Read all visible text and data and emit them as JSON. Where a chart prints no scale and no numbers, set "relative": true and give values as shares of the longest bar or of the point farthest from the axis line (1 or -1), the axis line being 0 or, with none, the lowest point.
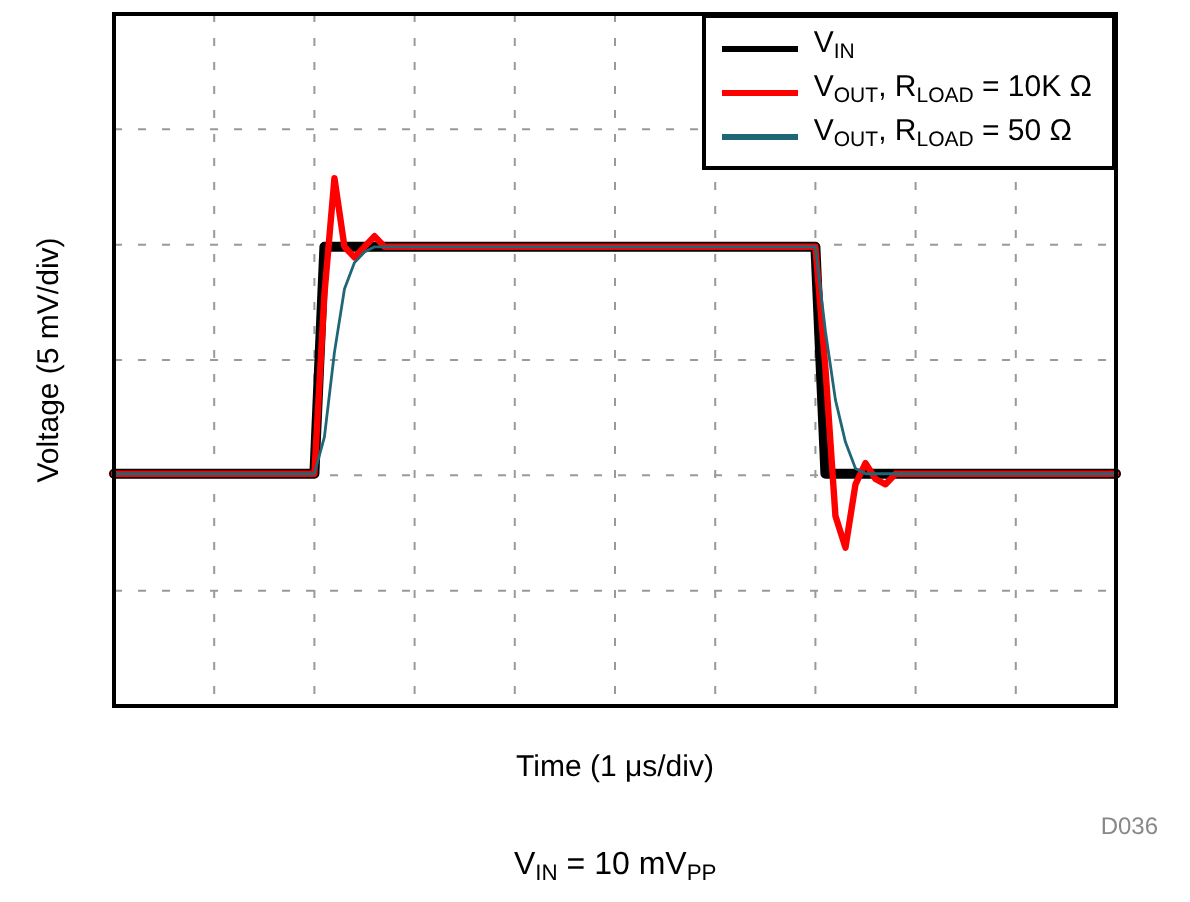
{
  "chart_data": {
    "type": "line",
    "relative": true,
    "xlabel": "Time (1 μs/div)",
    "ylabel": "Voltage (5 mV/div)",
    "grid": true,
    "legend": "top right",
    "marker": "none",
    "annotations": [
      "D036",
      "V$_{IN}$ = 10 mV$_{PP}$"
    ],
    "categories": [
      null,
      null,
      null,
      null,
      null,
      null,
      null,
      null,
      null,
      null,
      null,
      null,
      null,
      null,
      null,
      null,
      null,
      null,
      null,
      null,
      null,
      null,
      null,
      null,
      null,
      null,
      null,
      null,
      null,
      null,
      null,
      null,
      null,
      null,
      null,
      null,
      null,
      null,
      null,
      null,
      null,
      null,
      null,
      null,
      null,
      null,
      null,
      null,
      null,
      null,
      null,
      null,
      null,
      null,
      null,
      null,
      null,
      null,
      null,
      null,
      null,
      null,
      null,
      null,
      null,
      null,
      null,
      null,
      null,
      null,
      null,
      null,
      null,
      null,
      null,
      null,
      null,
      null,
      null,
      null,
      null,
      null,
      null,
      null,
      null,
      null,
      null,
      null,
      null,
      null,
      null,
      null,
      null,
      null,
      null,
      null,
      null,
      null,
      null,
      null,
      null
    ],
    "series": [
      {
        "name": "V$_{IN}$",
        "color": "#000000",
        "values": [
          0.44,
          0.44,
          0.44,
          0.44,
          0.44,
          0.44,
          0.44,
          0.44,
          0.44,
          0.44,
          0.44,
          0.44,
          0.44,
          0.44,
          0.44,
          0.44,
          0.44,
          0.44,
          0.44,
          0.44,
          0.44,
          0.87,
          0.87,
          0.87,
          0.87,
          0.87,
          0.87,
          0.87,
          0.87,
          0.87,
          0.87,
          0.87,
          0.87,
          0.87,
          0.87,
          0.87,
          0.87,
          0.87,
          0.87,
          0.87,
          0.87,
          0.87,
          0.87,
          0.87,
          0.87,
          0.87,
          0.87,
          0.87,
          0.87,
          0.87,
          0.87,
          0.87,
          0.87,
          0.87,
          0.87,
          0.87,
          0.87,
          0.87,
          0.87,
          0.87,
          0.87,
          0.87,
          0.87,
          0.87,
          0.87,
          0.87,
          0.87,
          0.87,
          0.87,
          0.87,
          0.87,
          0.44,
          0.44,
          0.44,
          0.44,
          0.44,
          0.44,
          0.44,
          0.44,
          0.44,
          0.44,
          0.44,
          0.44,
          0.44,
          0.44,
          0.44,
          0.44,
          0.44,
          0.44,
          0.44,
          0.44,
          0.44,
          0.44,
          0.44,
          0.44,
          0.44,
          0.44,
          0.44,
          0.44,
          0.44,
          0.44
        ]
      },
      {
        "name": "V$_{OUT}$, R$_{LOAD}$ = 10K Ω",
        "color": "#ff0000",
        "values": [
          0.44,
          0.44,
          0.44,
          0.44,
          0.44,
          0.44,
          0.44,
          0.44,
          0.44,
          0.44,
          0.44,
          0.44,
          0.44,
          0.44,
          0.44,
          0.44,
          0.44,
          0.44,
          0.44,
          0.44,
          0.44,
          0.78,
          1,
          0.87,
          0.85,
          0.87,
          0.89,
          0.87,
          0.87,
          0.87,
          0.87,
          0.87,
          0.87,
          0.87,
          0.87,
          0.87,
          0.87,
          0.87,
          0.87,
          0.87,
          0.87,
          0.87,
          0.87,
          0.87,
          0.87,
          0.87,
          0.87,
          0.87,
          0.87,
          0.87,
          0.87,
          0.87,
          0.87,
          0.87,
          0.87,
          0.87,
          0.87,
          0.87,
          0.87,
          0.87,
          0.87,
          0.87,
          0.87,
          0.87,
          0.87,
          0.87,
          0.87,
          0.87,
          0.87,
          0.87,
          0.87,
          0.64,
          0.36,
          0.3,
          0.42,
          0.46,
          0.43,
          0.42,
          0.44,
          0.44,
          0.44,
          0.44,
          0.44,
          0.44,
          0.44,
          0.44,
          0.44,
          0.44,
          0.44,
          0.44,
          0.44,
          0.44,
          0.44,
          0.44,
          0.44,
          0.44,
          0.44,
          0.44,
          0.44,
          0.44,
          0.44
        ]
      },
      {
        "name": "V$_{OUT}$, R$_{LOAD}$ = 50 Ω",
        "color": "#1f6677",
        "values": [
          0.44,
          0.44,
          0.44,
          0.44,
          0.44,
          0.44,
          0.44,
          0.44,
          0.44,
          0.44,
          0.44,
          0.44,
          0.44,
          0.44,
          0.44,
          0.44,
          0.44,
          0.44,
          0.44,
          0.44,
          0.44,
          0.51,
          0.67,
          0.79,
          0.84,
          0.86,
          0.87,
          0.87,
          0.87,
          0.87,
          0.87,
          0.87,
          0.87,
          0.87,
          0.87,
          0.87,
          0.87,
          0.87,
          0.87,
          0.87,
          0.87,
          0.87,
          0.87,
          0.87,
          0.87,
          0.87,
          0.87,
          0.87,
          0.87,
          0.87,
          0.87,
          0.87,
          0.87,
          0.87,
          0.87,
          0.87,
          0.87,
          0.87,
          0.87,
          0.87,
          0.87,
          0.87,
          0.87,
          0.87,
          0.87,
          0.87,
          0.87,
          0.87,
          0.87,
          0.87,
          0.87,
          0.71,
          0.58,
          0.5,
          0.45,
          0.44,
          0.44,
          0.44,
          0.44,
          0.44,
          0.44,
          0.44,
          0.44,
          0.44,
          0.44,
          0.44,
          0.44,
          0.44,
          0.44,
          0.44,
          0.44,
          0.44,
          0.44,
          0.44,
          0.44,
          0.44,
          0.44,
          0.44,
          0.44,
          0.44,
          0.44
        ]
      }
    ]
  }
}
